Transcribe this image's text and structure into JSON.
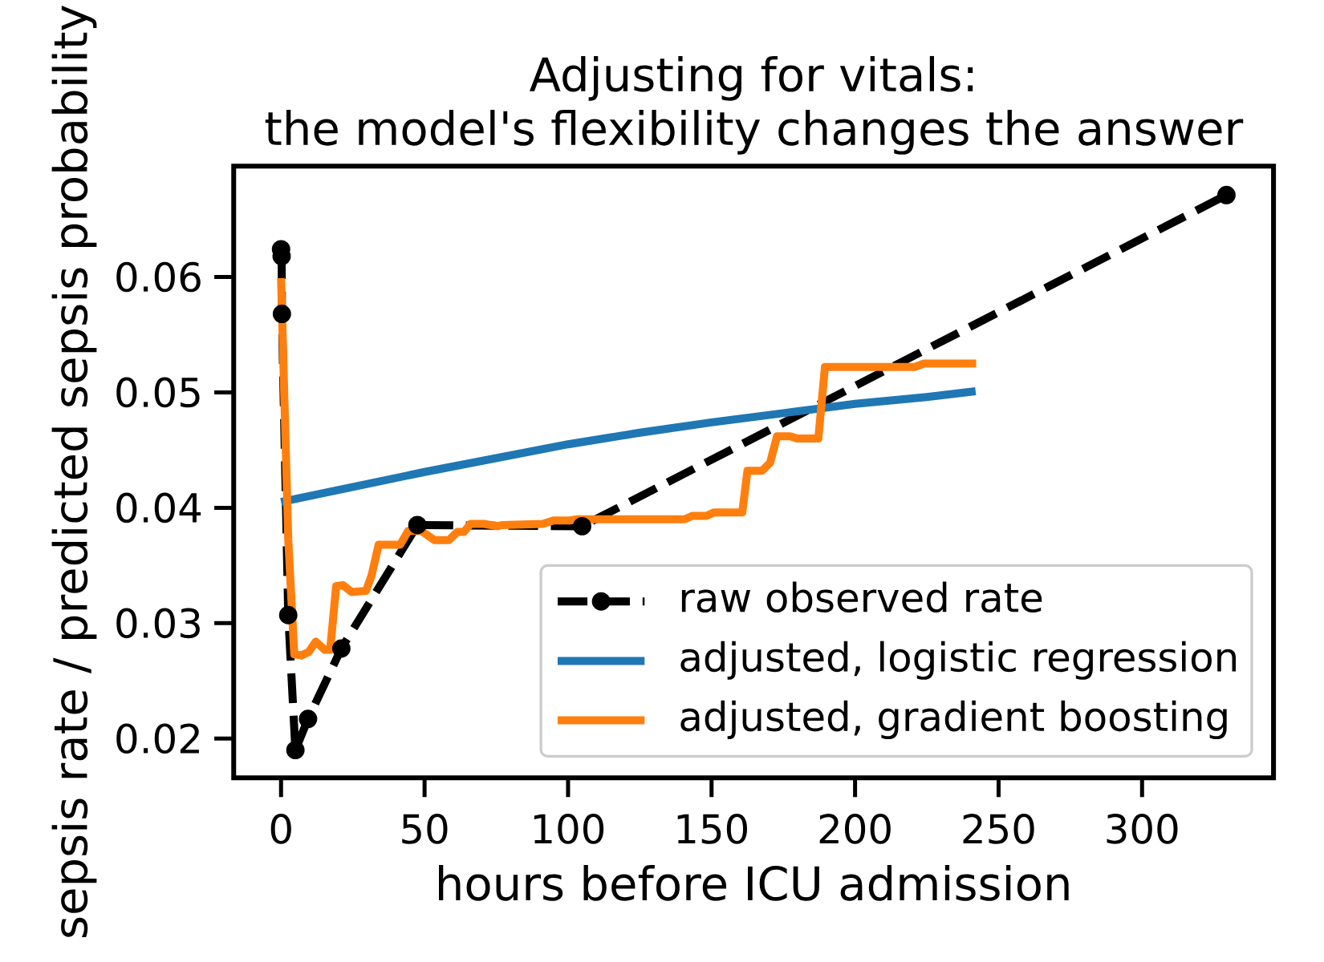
{
  "chart_data": {
    "type": "line",
    "title": "Adjusting for vitals:",
    "subtitle": "the model's flexibility changes the answer",
    "xlabel": "hours before ICU admission",
    "ylabel": "sepsis rate / predicted sepsis probability",
    "xlim": [
      -16.5,
      345.8
    ],
    "ylim": [
      0.0166,
      0.0696
    ],
    "xticks": [
      0,
      50,
      100,
      150,
      200,
      250,
      300
    ],
    "yticks": [
      0.02,
      0.03,
      0.04,
      0.05,
      0.06
    ],
    "legend": "bottom right",
    "series": [
      {
        "name": "raw observed rate",
        "color": "#000000",
        "marker": "circle",
        "line_style": "dashed",
        "x": [
          0,
          0.2,
          0.3,
          2.5,
          5.0,
          9.4,
          21.0,
          47.5,
          104.9,
          329.4
        ],
        "values": [
          0.0624,
          0.0618,
          0.0568,
          0.0307,
          0.019,
          0.0217,
          0.0278,
          0.0385,
          0.0384,
          0.0671
        ]
      },
      {
        "name": "adjusted, logistic regression",
        "color": "#1f77b4",
        "marker": "none",
        "line_style": "solid",
        "x": [
          0,
          25,
          50,
          75,
          100,
          125,
          150,
          175,
          200,
          225,
          242
        ],
        "values": [
          0.0405,
          0.0418,
          0.0431,
          0.0443,
          0.0455,
          0.0465,
          0.0474,
          0.0482,
          0.049,
          0.0496,
          0.0501
        ]
      },
      {
        "name": "adjusted, gradient boosting",
        "color": "#ff7f0e",
        "marker": "none",
        "line_style": "solid",
        "x": [
          0,
          2.5,
          4.6,
          7.1,
          9.6,
          12.1,
          15.2,
          17.1,
          19.2,
          21.5,
          24.6,
          29.6,
          31.5,
          34.0,
          41.5,
          44.3,
          48.8,
          53.4,
          58.5,
          61.4,
          63.7,
          66.0,
          70.7,
          75.4,
          77.2,
          91.2,
          94.9,
          100.5,
          103.3,
          140.6,
          143.4,
          148.3,
          150.9,
          160.7,
          162.5,
          167.6,
          170.4,
          172.8,
          177.4,
          179.8,
          187.2,
          189.5,
          220.8,
          224.0,
          242.2
        ],
        "values": [
          0.0599,
          0.0373,
          0.0273,
          0.0272,
          0.0275,
          0.0284,
          0.0277,
          0.0277,
          0.0332,
          0.0333,
          0.0327,
          0.0328,
          0.0341,
          0.0368,
          0.0368,
          0.038,
          0.038,
          0.0372,
          0.0372,
          0.0379,
          0.0379,
          0.0386,
          0.0386,
          0.0384,
          0.0385,
          0.0386,
          0.0389,
          0.0389,
          0.039,
          0.039,
          0.0393,
          0.0393,
          0.0396,
          0.0396,
          0.0432,
          0.0432,
          0.0439,
          0.0462,
          0.0462,
          0.046,
          0.046,
          0.0522,
          0.0522,
          0.0525,
          0.0525
        ]
      }
    ]
  }
}
